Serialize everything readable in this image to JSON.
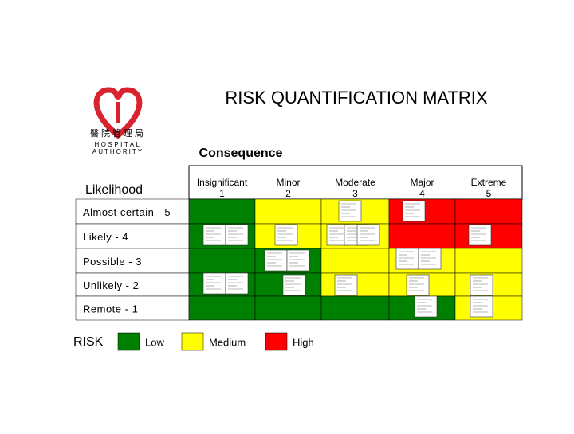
{
  "logo": {
    "chinese": "醫院管理局",
    "line1": "HOSPITAL",
    "line2": "AUTHORITY"
  },
  "title": "RISK QUANTIFICATION MATRIX",
  "consequence_label": "Consequence",
  "likelihood_label": "Likelihood",
  "columns": [
    {
      "name": "Insignificant",
      "level": 1
    },
    {
      "name": "Minor",
      "level": 2
    },
    {
      "name": "Moderate",
      "level": 3
    },
    {
      "name": "Major",
      "level": 4
    },
    {
      "name": "Extreme",
      "level": 5
    }
  ],
  "rows": [
    {
      "label": "Almost certain - 5",
      "cells": [
        "#008000",
        "#ffff00",
        "#ffff00",
        "#ff0000",
        "#ff0000"
      ]
    },
    {
      "label": "Likely - 4",
      "cells": [
        "#008000",
        "#ffff00",
        "#ffff00",
        "#ff0000",
        "#ff0000"
      ]
    },
    {
      "label": "Possible - 3",
      "cells": [
        "#008000",
        "#008000",
        "#ffff00",
        "#ffff00",
        "#ffff00"
      ]
    },
    {
      "label": "Unlikely - 2",
      "cells": [
        "#008000",
        "#008000",
        "#ffff00",
        "#ffff00",
        "#ffff00"
      ]
    },
    {
      "label": "Remote - 1",
      "cells": [
        "#008000",
        "#008000",
        "#008000",
        "#008000",
        "#ffff00"
      ]
    }
  ],
  "legend": {
    "title": "RISK",
    "items": [
      {
        "label": "Low",
        "color": "#008000"
      },
      {
        "label": "Medium",
        "color": "#ffff00"
      },
      {
        "label": "High",
        "color": "#ff0000"
      }
    ]
  }
}
